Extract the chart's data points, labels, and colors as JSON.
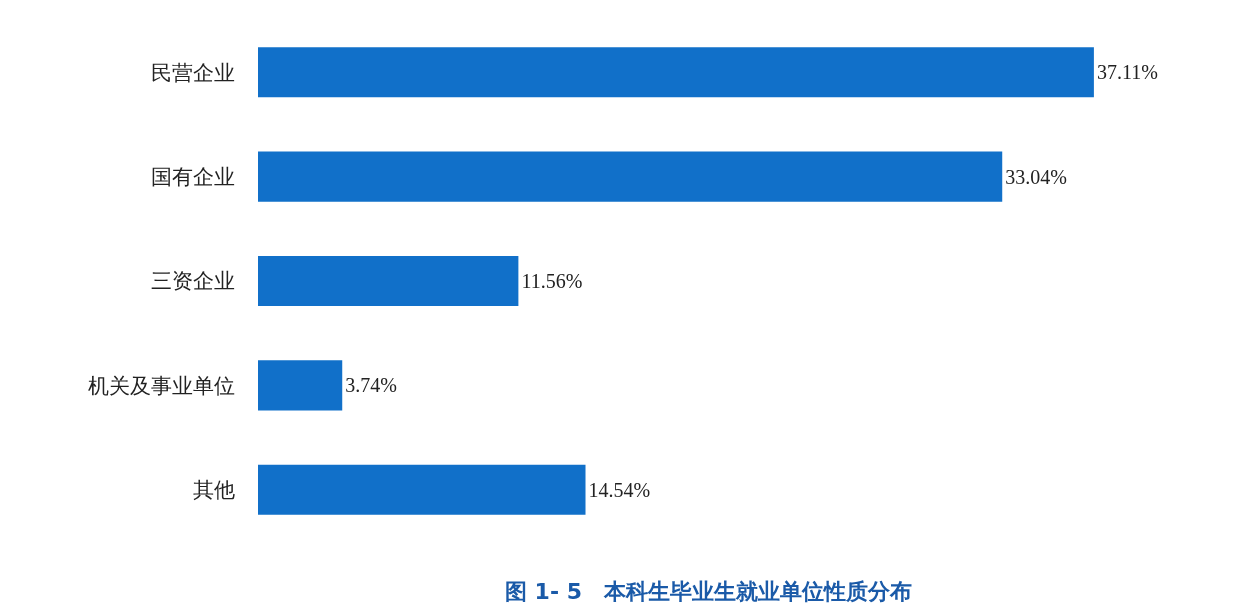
{
  "chart_data": {
    "type": "bar",
    "orientation": "horizontal",
    "title": "图 1- 5　本科生毕业生就业单位性质分布",
    "categories": [
      "民营企业",
      "国有企业",
      "三资企业",
      "机关及事业单位",
      "其他"
    ],
    "values": [
      37.11,
      33.04,
      11.56,
      3.74,
      14.54
    ],
    "value_labels": [
      "37.11%",
      "33.04%",
      "11.56%",
      "3.74%",
      "14.54%"
    ],
    "color": "#1170c9",
    "legend": false,
    "tick_labels": "y"
  }
}
